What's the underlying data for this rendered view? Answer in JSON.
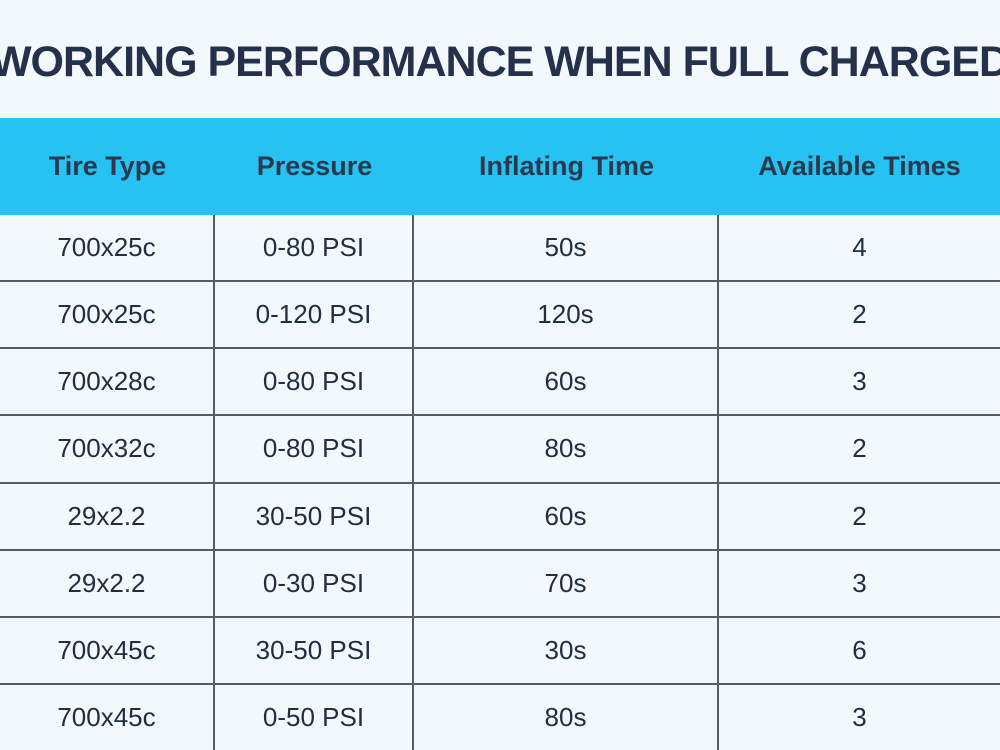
{
  "title": "WORKING PERFORMANCE WHEN FULL CHARGED",
  "colors": {
    "header_bg": "#26c2f1",
    "page_bg": "#f3f8fc",
    "text_navy": "#25314b",
    "grid_line": "#565d66"
  },
  "chart_data": {
    "type": "table",
    "title": "WORKING PERFORMANCE WHEN FULL CHARGED",
    "headers": [
      "Tire Type",
      "Pressure",
      "Inflating Time",
      "Available Times"
    ],
    "rows": [
      [
        "700x25c",
        "0-80 PSI",
        "50s",
        "4"
      ],
      [
        "700x25c",
        "0-120 PSI",
        "120s",
        "2"
      ],
      [
        "700x28c",
        "0-80 PSI",
        "60s",
        "3"
      ],
      [
        "700x32c",
        "0-80 PSI",
        "80s",
        "2"
      ],
      [
        "29x2.2",
        "30-50 PSI",
        "60s",
        "2"
      ],
      [
        "29x2.2",
        "0-30 PSI",
        "70s",
        "3"
      ],
      [
        "700x45c",
        "30-50 PSI",
        "30s",
        "6"
      ],
      [
        "700x45c",
        "0-50 PSI",
        "80s",
        "3"
      ]
    ]
  }
}
